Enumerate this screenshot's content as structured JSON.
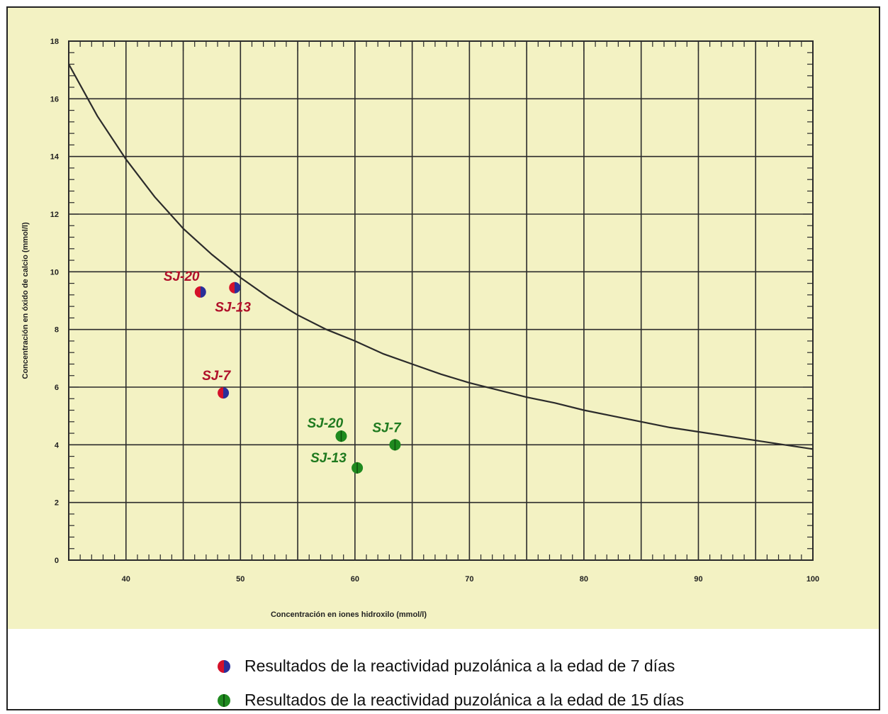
{
  "colors": {
    "background": "#f3f2c3",
    "grid": "#2b2b2b",
    "curve": "#2b2b2b",
    "series7_label": "#b0102a",
    "series7_dot_left": "#d4112a",
    "series7_dot_right": "#2a2f9a",
    "series15_label": "#1f7a1f",
    "series15_dot": "#1f8a1f"
  },
  "chart_data": {
    "type": "scatter",
    "title": "",
    "xlabel": "Concentración en iones hidroxilo (mmol/l)",
    "ylabel": "Concentración en óxido de calcio (mmol/l)",
    "xlim": [
      35,
      100
    ],
    "ylim": [
      0,
      18
    ],
    "xticks": [
      40,
      50,
      60,
      70,
      80,
      90,
      100
    ],
    "xtick_labels": [
      "40",
      "50",
      "60",
      "70",
      "80",
      "90",
      "100"
    ],
    "yticks": [
      0,
      2,
      4,
      6,
      8,
      10,
      12,
      14,
      16,
      18
    ],
    "ytick_labels": [
      "0",
      "2",
      "4",
      "6",
      "8",
      "10",
      "12",
      "14",
      "16",
      "18"
    ],
    "grid": true,
    "reference_curve": {
      "x": [
        35,
        37.5,
        40,
        42.5,
        45,
        47.5,
        50,
        52.5,
        55,
        57.5,
        60,
        62.5,
        65,
        67.5,
        70,
        72.5,
        75,
        77.5,
        80,
        82.5,
        85,
        87.5,
        90,
        92.5,
        95,
        97.5,
        100
      ],
      "y": [
        17.2,
        15.4,
        13.9,
        12.6,
        11.5,
        10.6,
        9.8,
        9.1,
        8.5,
        8.0,
        7.6,
        7.15,
        6.8,
        6.45,
        6.15,
        5.9,
        5.65,
        5.45,
        5.2,
        5.0,
        4.8,
        4.6,
        4.45,
        4.3,
        4.15,
        4.0,
        3.85
      ]
    },
    "series": [
      {
        "name": "Resultados de la reactividad puzolánica a la edad de 7 días",
        "points": [
          {
            "label": "SJ-20",
            "x": 46.5,
            "y": 9.3
          },
          {
            "label": "SJ-13",
            "x": 49.5,
            "y": 9.45
          },
          {
            "label": "SJ-7",
            "x": 48.5,
            "y": 5.8
          }
        ]
      },
      {
        "name": "Resultados de la reactividad puzolánica a la edad de 15 días",
        "points": [
          {
            "label": "SJ-20",
            "x": 58.8,
            "y": 4.3
          },
          {
            "label": "SJ-13",
            "x": 60.2,
            "y": 3.2
          },
          {
            "label": "SJ-7",
            "x": 63.5,
            "y": 4.0
          }
        ]
      }
    ]
  },
  "legend": {
    "items": [
      "Resultados de la reactividad puzolánica a la edad de 7 días",
      "Resultados de la reactividad puzolánica a la edad de 15 días"
    ]
  }
}
